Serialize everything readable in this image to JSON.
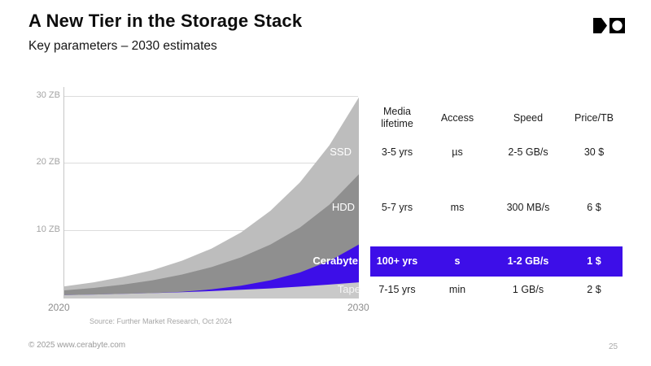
{
  "slide": {
    "title": "A New Tier in the Storage Stack",
    "subtitle": "Key parameters – 2030 estimates",
    "footer_left": "© 2025 www.cerabyte.com",
    "page_number": "25",
    "logo_icon": "cerabyte-logo",
    "logo_color": "#000000"
  },
  "chart_data": {
    "type": "area",
    "stacked": true,
    "x": [
      2020,
      2021,
      2022,
      2023,
      2024,
      2025,
      2026,
      2027,
      2028,
      2029,
      2030
    ],
    "xtick_labels": [
      "2020",
      "2030"
    ],
    "ytick_labels": [
      "30 ZB",
      "20 ZB",
      "10 ZB"
    ],
    "ylabel_unit": "ZB",
    "ylim": [
      0,
      31.5
    ],
    "grid": "horizontal-only",
    "legend_position": "labels-on-areas",
    "series": [
      {
        "name": "Tape",
        "color": "#c9c9c9",
        "values": [
          0.5,
          0.59,
          0.69,
          0.8,
          0.94,
          1.1,
          1.29,
          1.5,
          1.76,
          2.06,
          2.4
        ]
      },
      {
        "name": "Cerabyte",
        "color": "#3d0ee8",
        "values": [
          0,
          0,
          0,
          0,
          0.05,
          0.25,
          0.6,
          1.2,
          2.1,
          3.5,
          5.6
        ]
      },
      {
        "name": "HDD",
        "color": "#8f8f8f",
        "values": [
          0.7,
          0.98,
          1.37,
          1.9,
          2.56,
          3.3,
          4.21,
          5.3,
          6.64,
          8.34,
          10.4
        ]
      },
      {
        "name": "SSD",
        "color": "#bdbdbd",
        "values": [
          0.6,
          0.83,
          1.14,
          1.5,
          2.05,
          2.75,
          3.7,
          5.0,
          6.7,
          8.8,
          11.4
        ]
      }
    ],
    "source": "Source: Further Market Research, Oct 2024"
  },
  "table": {
    "columns": [
      "Media lifetime",
      "Access",
      "Speed",
      "Price/TB"
    ],
    "rows": [
      {
        "tier": "SSD",
        "highlighted": false,
        "cells": [
          "3-5 yrs",
          "µs",
          "2-5 GB/s",
          "30 $"
        ]
      },
      {
        "tier": "HDD",
        "highlighted": false,
        "cells": [
          "5-7 yrs",
          "ms",
          "300 MB/s",
          "6 $"
        ]
      },
      {
        "tier": "Cerabyte",
        "highlighted": true,
        "cells": [
          "100+ yrs",
          "s",
          "1-2 GB/s",
          "1 $"
        ]
      },
      {
        "tier": "Tape",
        "highlighted": false,
        "cells": [
          "7-15 yrs",
          "min",
          "1 GB/s",
          "2 $"
        ]
      }
    ],
    "highlight_color": "#3d0ee8",
    "highlight_text_color": "#ffffff"
  }
}
